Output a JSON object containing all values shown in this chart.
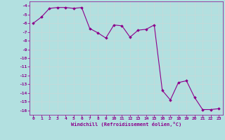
{
  "x": [
    0,
    1,
    2,
    3,
    4,
    5,
    6,
    7,
    8,
    9,
    10,
    11,
    12,
    13,
    14,
    15,
    16,
    17,
    18,
    19,
    20,
    21,
    22,
    23
  ],
  "y": [
    -6,
    -5.3,
    -4.3,
    -4.2,
    -4.2,
    -4.3,
    -4.2,
    -6.6,
    -7.1,
    -7.7,
    -6.2,
    -6.3,
    -7.6,
    -6.8,
    -6.7,
    -6.2,
    -13.7,
    -14.8,
    -12.8,
    -12.6,
    -14.5,
    -15.9,
    -15.9,
    -15.8
  ],
  "line_color": "#8b008b",
  "marker": "D",
  "marker_size": 1.8,
  "line_width": 0.8,
  "bg_color": "#b2e0e0",
  "grid_color": "#c8d8d8",
  "xlabel": "Windchill (Refroidissement éolien,°C)",
  "xlabel_color": "#8b008b",
  "tick_color": "#8b008b",
  "xlim": [
    -0.5,
    23.5
  ],
  "ylim": [
    -16.5,
    -3.5
  ],
  "yticks": [
    -4,
    -5,
    -6,
    -7,
    -8,
    -9,
    -10,
    -11,
    -12,
    -13,
    -14,
    -15,
    -16
  ],
  "xticks": [
    0,
    1,
    2,
    3,
    4,
    5,
    6,
    7,
    8,
    9,
    10,
    11,
    12,
    13,
    14,
    15,
    16,
    17,
    18,
    19,
    20,
    21,
    22,
    23
  ]
}
